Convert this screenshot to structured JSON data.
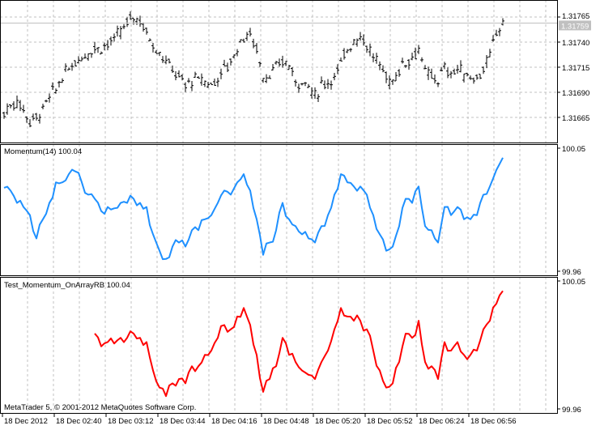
{
  "colors": {
    "background": "#ffffff",
    "price_bars": "#000000",
    "momentum_line": "#1e90ff",
    "test_line": "#ff0000",
    "grid": "#c0c0c0",
    "current_price_label_bg": "#c0c0c0"
  },
  "panes": {
    "momentum_label": "Momentum(14) 100.04",
    "test_label": "Test_Momentum_OnArrayRB 100.04",
    "copyright": "MetaTrader 5, © 2001-2012 MetaQuotes Software Corp."
  },
  "chart_data": [
    {
      "type": "bar",
      "subtype": "ohlc",
      "y_ticks": [
        "1.31765",
        "1.31740",
        "1.31715",
        "1.31690",
        "1.31665"
      ],
      "current_price": "1.31759",
      "close": [
        1.31669,
        1.31677,
        1.31681,
        1.31673,
        1.31661,
        1.31665,
        1.31673,
        1.31685,
        1.31693,
        1.31705,
        1.31713,
        1.31721,
        1.31725,
        1.3173,
        1.31734,
        1.31735,
        1.31738,
        1.31742,
        1.3175,
        1.31758,
        1.31766,
        1.31762,
        1.3175,
        1.31738,
        1.3173,
        1.31721,
        1.31713,
        1.31705,
        1.31697,
        1.31701,
        1.31703,
        1.31701,
        1.31697,
        1.31705,
        1.31713,
        1.31721,
        1.31734,
        1.31746,
        1.31746,
        1.31734,
        1.31705,
        1.31708,
        1.31713,
        1.31721,
        1.31717,
        1.31701,
        1.31701,
        1.31697,
        1.31685,
        1.31697,
        1.31701,
        1.31705,
        1.31717,
        1.31734,
        1.31742,
        1.31746,
        1.31738,
        1.31725,
        1.31717,
        1.31705,
        1.31701,
        1.31713,
        1.31721,
        1.31725,
        1.31734,
        1.31709,
        1.31705,
        1.31703,
        1.31713,
        1.31709,
        1.31713,
        1.31709,
        1.31705,
        1.31705,
        1.31713,
        1.31725,
        1.3175,
        1.31758
      ],
      "grid": true
    },
    {
      "type": "line",
      "series": [
        {
          "name": "Momentum(14)",
          "values": [
            100.021,
            100.019,
            100.01,
            100.007,
            100.001,
            99.984,
            99.998,
            100.01,
            100.025,
            100.025,
            100.031,
            100.033,
            100.025,
            100.016,
            100.013,
            100.004,
            100.007,
            100.006,
            100.01,
            100.01,
            100.013,
            100.01,
            100.007,
            99.987,
            99.975,
            99.969,
            99.978,
            99.981,
            99.978,
            99.99,
            99.99,
            99.998,
            100.001,
            100.01,
            100.019,
            100.016,
            100.025,
            100.031,
            100.019,
            99.998,
            99.972,
            99.981,
            99.99,
            100.01,
            99.998,
            99.993,
            99.987,
            99.984,
            99.981,
            99.993,
            100.001,
            100.016,
            100.031,
            100.025,
            100.022,
            100.022,
            100.016,
            100.001,
            99.987,
            99.975,
            99.978,
            99.993,
            100.013,
            100.01,
            100.022,
            99.993,
            99.99,
            99.981,
            100.007,
            100.001,
            100.007,
            99.998,
            99.998,
            100.001,
            100.016,
            100.022,
            100.034,
            100.043
          ]
        }
      ],
      "y_ticks": [
        "100.05",
        "99.96"
      ],
      "ylim": [
        99.96,
        100.05
      ]
    },
    {
      "type": "line",
      "series": [
        {
          "name": "Test_Momentum_OnArrayRB",
          "values": [
            null,
            null,
            null,
            null,
            null,
            null,
            null,
            null,
            null,
            null,
            null,
            null,
            null,
            null,
            100.013,
            100.004,
            100.007,
            100.006,
            100.01,
            100.01,
            100.013,
            100.01,
            100.007,
            99.987,
            99.975,
            99.969,
            99.978,
            99.981,
            99.978,
            99.99,
            99.99,
            99.998,
            100.001,
            100.01,
            100.019,
            100.016,
            100.025,
            100.031,
            100.019,
            99.998,
            99.972,
            99.981,
            99.99,
            100.01,
            99.998,
            99.993,
            99.987,
            99.984,
            99.981,
            99.993,
            100.001,
            100.016,
            100.031,
            100.025,
            100.022,
            100.022,
            100.016,
            100.001,
            99.987,
            99.975,
            99.978,
            99.993,
            100.013,
            100.01,
            100.022,
            99.993,
            99.99,
            99.981,
            100.007,
            100.001,
            100.007,
            99.998,
            99.998,
            100.001,
            100.016,
            100.022,
            100.034,
            100.043
          ]
        }
      ],
      "y_ticks": [
        "100.05",
        "99.96"
      ],
      "ylim": [
        99.96,
        100.05
      ]
    }
  ],
  "x_axis": {
    "labels": [
      "18 Dec 2012",
      "18 Dec 02:40",
      "18 Dec 03:12",
      "18 Dec 03:44",
      "18 Dec 04:16",
      "18 Dec 04:48",
      "18 Dec 05:20",
      "18 Dec 05:52",
      "18 Dec 06:24",
      "18 Dec 06:56"
    ]
  }
}
